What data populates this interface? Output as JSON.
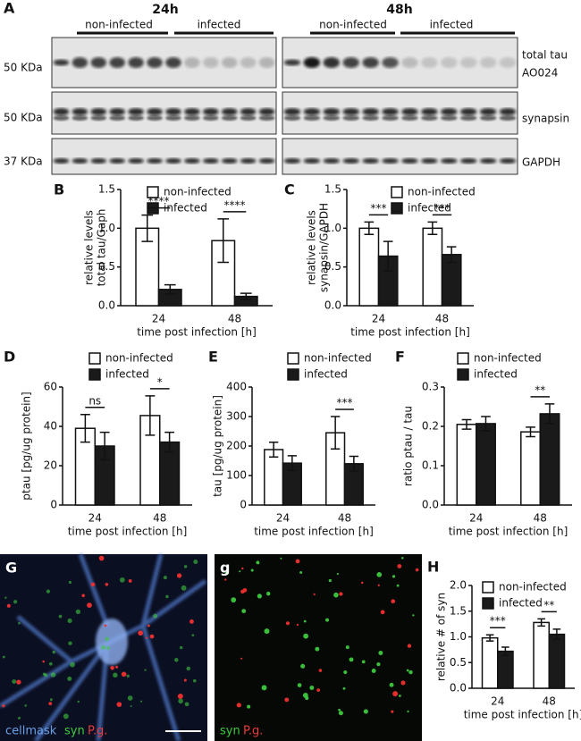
{
  "blot": {
    "panel": "A",
    "timepoints": [
      {
        "label": "24h",
        "groups": [
          "non-infected",
          "infected"
        ]
      },
      {
        "label": "48h",
        "groups": [
          "non-infected",
          "infected"
        ]
      }
    ],
    "markers": [
      "50 KDa",
      "50 KDa",
      "37 KDa"
    ],
    "rows": [
      [
        "total tau",
        "AO024"
      ],
      [
        "synapsin"
      ],
      [
        "GAPDH"
      ]
    ]
  },
  "chart_data": [
    {
      "type": "bar",
      "panel": "B",
      "ylabel": [
        "relative levels",
        "total tau/Gaph"
      ],
      "xlabel": "time post infection [h]",
      "categories": [
        "24",
        "48"
      ],
      "series": [
        {
          "name": "non-infected",
          "color": "#ffffff",
          "values": [
            1.0,
            0.84
          ],
          "errors": [
            0.17,
            0.28
          ]
        },
        {
          "name": "infected",
          "color": "#1a1a1a",
          "values": [
            0.21,
            0.12
          ],
          "errors": [
            0.06,
            0.04
          ]
        }
      ],
      "annotations": [
        "****",
        "****"
      ],
      "ylim": [
        0,
        1.5
      ],
      "yticks": [
        {
          "value": 0,
          "label": "0.0"
        },
        0.5,
        {
          "value": 1,
          "label": "1.0"
        },
        1.5
      ]
    },
    {
      "type": "bar",
      "panel": "C",
      "ylabel": [
        "relative levels",
        "synapsin/GAPDH"
      ],
      "xlabel": "time post infection [h]",
      "categories": [
        "24",
        "48"
      ],
      "series": [
        {
          "name": "non-infected",
          "color": "#ffffff",
          "values": [
            1.0,
            1.0
          ],
          "errors": [
            0.08,
            0.08
          ]
        },
        {
          "name": "infected",
          "color": "#1a1a1a",
          "values": [
            0.64,
            0.66
          ],
          "errors": [
            0.19,
            0.1
          ]
        }
      ],
      "annotations": [
        "***",
        "***"
      ],
      "ylim": [
        0,
        1.5
      ],
      "yticks": [
        {
          "value": 0,
          "label": "0.0"
        },
        0.5,
        {
          "value": 1,
          "label": "1.0"
        },
        1.5
      ]
    },
    {
      "type": "bar",
      "panel": "D",
      "ylabel": [
        "ptau [pg/ug protein]"
      ],
      "xlabel": "time post infection [h]",
      "categories": [
        "24",
        "48"
      ],
      "series": [
        {
          "name": "non-infected",
          "color": "#ffffff",
          "values": [
            39,
            45.5
          ],
          "errors": [
            7,
            10
          ]
        },
        {
          "name": "infected",
          "color": "#1a1a1a",
          "values": [
            30,
            32
          ],
          "errors": [
            7,
            5
          ]
        }
      ],
      "annotations": [
        "ns",
        "*"
      ],
      "ylim": [
        0,
        60
      ],
      "yticks": [
        0,
        20,
        40,
        60
      ]
    },
    {
      "type": "bar",
      "panel": "E",
      "ylabel": [
        "tau [pg/ug protein]"
      ],
      "xlabel": "time post infection [h]",
      "categories": [
        "24",
        "48"
      ],
      "series": [
        {
          "name": "non-infected",
          "color": "#ffffff",
          "values": [
            188,
            245
          ],
          "errors": [
            25,
            55
          ]
        },
        {
          "name": "infected",
          "color": "#1a1a1a",
          "values": [
            142,
            140
          ],
          "errors": [
            25,
            25
          ]
        }
      ],
      "annotations": [
        null,
        "***"
      ],
      "ylim": [
        0,
        400
      ],
      "yticks": [
        0,
        100,
        200,
        300,
        400
      ]
    },
    {
      "type": "bar",
      "panel": "F",
      "ylabel": [
        "ratio ptau / tau"
      ],
      "xlabel": "time post infection [h]",
      "categories": [
        "24",
        "48"
      ],
      "series": [
        {
          "name": "non-infected",
          "color": "#ffffff",
          "values": [
            0.205,
            0.186
          ],
          "errors": [
            0.012,
            0.012
          ]
        },
        {
          "name": "infected",
          "color": "#1a1a1a",
          "values": [
            0.207,
            0.232
          ],
          "errors": [
            0.018,
            0.025
          ]
        }
      ],
      "annotations": [
        null,
        "**"
      ],
      "ylim": [
        0,
        0.3
      ],
      "yticks": [
        {
          "value": 0,
          "label": "0.0"
        },
        0.1,
        0.2,
        0.3
      ]
    },
    {
      "type": "bar",
      "panel": "H",
      "ylabel": [
        "relative # of syn"
      ],
      "xlabel": "time post infection [h]",
      "categories": [
        "24",
        "48"
      ],
      "series": [
        {
          "name": "non-infected",
          "color": "#ffffff",
          "values": [
            0.98,
            1.28
          ],
          "errors": [
            0.06,
            0.07
          ]
        },
        {
          "name": "infected",
          "color": "#1a1a1a",
          "values": [
            0.72,
            1.05
          ],
          "errors": [
            0.08,
            0.1
          ]
        }
      ],
      "annotations": [
        "***",
        "**"
      ],
      "ylim": [
        0,
        2.0
      ],
      "yticks": [
        {
          "value": 0,
          "label": "0.0"
        },
        0.5,
        {
          "value": 1,
          "label": "1.0"
        },
        1.5,
        {
          "value": 2,
          "label": "2.0"
        }
      ]
    }
  ],
  "images": [
    {
      "panel": "G",
      "labels": [
        "cellmask",
        "syn",
        "P.g."
      ]
    },
    {
      "panel": "g",
      "labels": [
        "syn",
        "P.g."
      ]
    }
  ]
}
